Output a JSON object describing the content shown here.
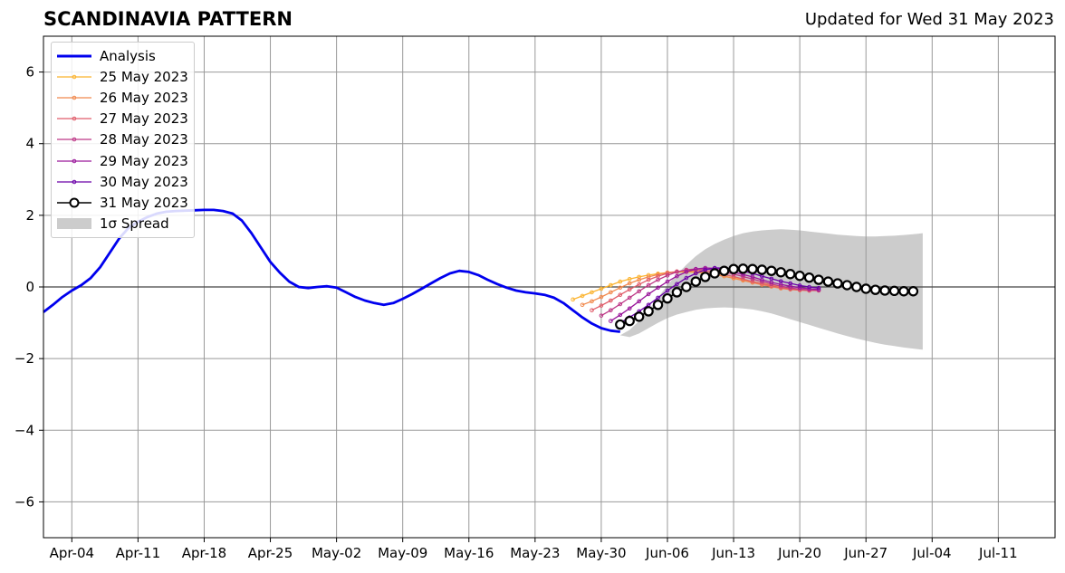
{
  "chart_data": {
    "type": "line",
    "title": "SCANDINAVIA PATTERN",
    "subtitle": "Updated for Wed 31 May 2023",
    "ylim": [
      -7,
      7
    ],
    "y_ticks": [
      -6,
      -4,
      -2,
      0,
      2,
      4,
      6
    ],
    "y_tick_labels": [
      "−6",
      "−4",
      "−2",
      "0",
      "2",
      "4",
      "6"
    ],
    "x_range": [
      "2023-04-01",
      "2023-07-17"
    ],
    "x_ticks": [
      "2023-04-04",
      "2023-04-11",
      "2023-04-18",
      "2023-04-25",
      "2023-05-02",
      "2023-05-09",
      "2023-05-16",
      "2023-05-23",
      "2023-05-30",
      "2023-06-06",
      "2023-06-13",
      "2023-06-20",
      "2023-06-27",
      "2023-07-04",
      "2023-07-11"
    ],
    "x_tick_labels": [
      "Apr-04",
      "Apr-11",
      "Apr-18",
      "Apr-25",
      "May-02",
      "May-09",
      "May-16",
      "May-23",
      "May-30",
      "Jun-06",
      "Jun-13",
      "Jun-20",
      "Jun-27",
      "Jul-04",
      "Jul-11"
    ],
    "grid": true,
    "legend_position": "top-left",
    "zero_line": true,
    "analysis": {
      "name": "Analysis",
      "color": "#0000ee",
      "start": "2023-04-01",
      "values": [
        -0.7,
        -0.5,
        -0.28,
        -0.1,
        0.05,
        0.25,
        0.55,
        0.95,
        1.35,
        1.65,
        1.82,
        1.95,
        2.05,
        2.1,
        2.12,
        2.13,
        2.14,
        2.15,
        2.15,
        2.12,
        2.05,
        1.85,
        1.5,
        1.1,
        0.7,
        0.4,
        0.15,
        0.0,
        -0.03,
        0.0,
        0.02,
        -0.02,
        -0.15,
        -0.28,
        -0.38,
        -0.45,
        -0.5,
        -0.45,
        -0.33,
        -0.2,
        -0.05,
        0.1,
        0.25,
        0.38,
        0.45,
        0.42,
        0.33,
        0.2,
        0.08,
        -0.02,
        -0.1,
        -0.15,
        -0.18,
        -0.22,
        -0.3,
        -0.45,
        -0.65,
        -0.85,
        -1.02,
        -1.15,
        -1.22,
        -1.25
      ]
    },
    "forecasts": [
      {
        "name": "25 May 2023",
        "color": "#fbb32f",
        "start": "2023-05-27",
        "values": [
          -0.35,
          -0.25,
          -0.15,
          -0.05,
          0.05,
          0.15,
          0.22,
          0.28,
          0.33,
          0.37,
          0.4,
          0.42,
          0.42,
          0.41,
          0.38,
          0.35,
          0.3,
          0.25,
          0.2,
          0.15,
          0.1,
          0.05,
          0.0,
          -0.05,
          -0.08
        ]
      },
      {
        "name": "26 May 2023",
        "color": "#f1894d",
        "start": "2023-05-28",
        "values": [
          -0.5,
          -0.4,
          -0.28,
          -0.15,
          -0.02,
          0.1,
          0.2,
          0.28,
          0.35,
          0.4,
          0.43,
          0.44,
          0.43,
          0.4,
          0.35,
          0.3,
          0.24,
          0.18,
          0.12,
          0.06,
          0.01,
          -0.04,
          -0.07,
          -0.09,
          -0.1
        ]
      },
      {
        "name": "27 May 2023",
        "color": "#e05c6a",
        "start": "2023-05-29",
        "values": [
          -0.65,
          -0.52,
          -0.38,
          -0.22,
          -0.07,
          0.07,
          0.2,
          0.3,
          0.38,
          0.43,
          0.46,
          0.47,
          0.45,
          0.41,
          0.35,
          0.29,
          0.22,
          0.15,
          0.09,
          0.03,
          -0.02,
          -0.06,
          -0.08,
          -0.1,
          -0.1
        ]
      },
      {
        "name": "28 May 2023",
        "color": "#bd3786",
        "start": "2023-05-30",
        "values": [
          -0.8,
          -0.65,
          -0.48,
          -0.3,
          -0.12,
          0.05,
          0.2,
          0.32,
          0.42,
          0.48,
          0.5,
          0.5,
          0.47,
          0.42,
          0.36,
          0.29,
          0.22,
          0.15,
          0.08,
          0.02,
          -0.03,
          -0.06,
          -0.08,
          -0.09
        ]
      },
      {
        "name": "29 May 2023",
        "color": "#9a179b",
        "start": "2023-05-31",
        "values": [
          -0.95,
          -0.78,
          -0.6,
          -0.4,
          -0.2,
          -0.02,
          0.15,
          0.3,
          0.42,
          0.5,
          0.53,
          0.52,
          0.48,
          0.42,
          0.35,
          0.28,
          0.2,
          0.13,
          0.07,
          0.02,
          -0.02,
          -0.05,
          -0.07
        ]
      },
      {
        "name": "30 May 2023",
        "color": "#6a00a8",
        "start": "2023-06-01",
        "values": [
          -1.0,
          -0.85,
          -0.68,
          -0.5,
          -0.3,
          -0.1,
          0.08,
          0.25,
          0.38,
          0.48,
          0.53,
          0.53,
          0.5,
          0.45,
          0.38,
          0.3,
          0.23,
          0.16,
          0.1,
          0.04,
          0.0,
          -0.03
        ]
      }
    ],
    "current_forecast": {
      "name": "31 May 2023",
      "color": "#000000",
      "start": "2023-06-01",
      "values": [
        -1.05,
        -0.95,
        -0.83,
        -0.68,
        -0.5,
        -0.32,
        -0.15,
        0.0,
        0.15,
        0.28,
        0.38,
        0.45,
        0.5,
        0.51,
        0.5,
        0.48,
        0.45,
        0.41,
        0.36,
        0.31,
        0.26,
        0.2,
        0.15,
        0.1,
        0.05,
        0.0,
        -0.05,
        -0.08,
        -0.1,
        -0.11,
        -0.12,
        -0.12
      ]
    },
    "spread": {
      "name": "1σ Spread",
      "color": "#cccccc",
      "start": "2023-06-01",
      "upper": [
        -1.35,
        -1.2,
        -0.95,
        -0.65,
        -0.3,
        0.05,
        0.35,
        0.62,
        0.86,
        1.05,
        1.2,
        1.32,
        1.42,
        1.5,
        1.55,
        1.58,
        1.6,
        1.61,
        1.6,
        1.58,
        1.55,
        1.52,
        1.49,
        1.46,
        1.44,
        1.42,
        1.41,
        1.41,
        1.42,
        1.43,
        1.45,
        1.47,
        1.5
      ],
      "lower": [
        -1.35,
        -1.4,
        -1.3,
        -1.15,
        -1.0,
        -0.87,
        -0.77,
        -0.7,
        -0.64,
        -0.6,
        -0.58,
        -0.57,
        -0.58,
        -0.6,
        -0.63,
        -0.68,
        -0.74,
        -0.82,
        -0.9,
        -0.98,
        -1.06,
        -1.14,
        -1.22,
        -1.3,
        -1.37,
        -1.44,
        -1.5,
        -1.56,
        -1.61,
        -1.65,
        -1.69,
        -1.72,
        -1.75
      ]
    }
  }
}
